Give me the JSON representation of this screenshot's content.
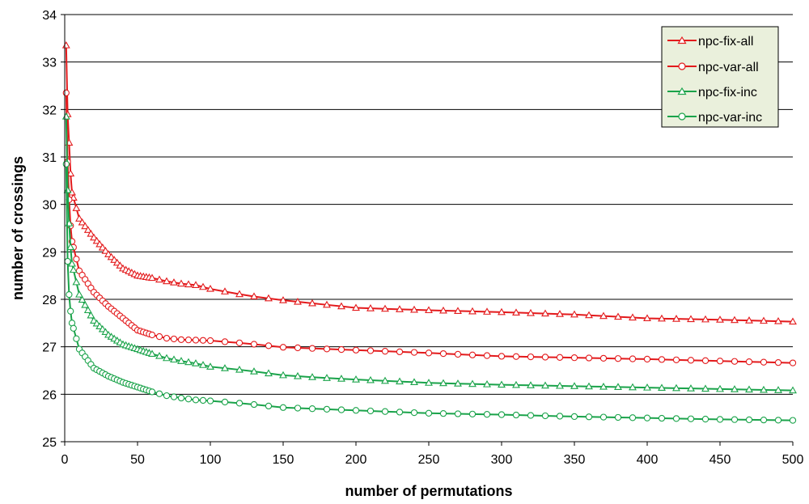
{
  "chart_data": {
    "type": "line",
    "title": "",
    "xlabel": "number of permutations",
    "ylabel": "number of crossings",
    "xlim": [
      0,
      500
    ],
    "ylim": [
      25,
      34
    ],
    "x_ticks": [
      "0",
      "50",
      "100",
      "150",
      "200",
      "250",
      "300",
      "350",
      "400",
      "450",
      "500"
    ],
    "y_ticks": [
      "25",
      "26",
      "27",
      "28",
      "29",
      "30",
      "31",
      "32",
      "33",
      "34"
    ],
    "grid": "horizontal",
    "legend_position": "top-right",
    "colors": {
      "red": "#e31a1c",
      "green": "#1aa34a",
      "background": "#ffffff",
      "legend_bg": "#eaf0dc"
    },
    "x": [
      1,
      2,
      3,
      4,
      5,
      10,
      20,
      30,
      40,
      50,
      60,
      70,
      80,
      90,
      100,
      125,
      150,
      175,
      200,
      250,
      300,
      350,
      400,
      450,
      500
    ],
    "series": [
      {
        "name": "npc-fix-all",
        "color": "#e31a1c",
        "marker": "triangle",
        "values": [
          33.35,
          31.9,
          31.3,
          30.65,
          30.25,
          29.7,
          29.3,
          28.95,
          28.65,
          28.5,
          28.45,
          28.38,
          28.33,
          28.3,
          28.22,
          28.08,
          27.98,
          27.9,
          27.82,
          27.77,
          27.73,
          27.68,
          27.6,
          27.57,
          27.53
        ]
      },
      {
        "name": "npc-var-all",
        "color": "#e31a1c",
        "marker": "circle",
        "values": [
          32.35,
          30.9,
          30.1,
          29.55,
          29.22,
          28.6,
          28.15,
          27.85,
          27.6,
          27.35,
          27.25,
          27.18,
          27.15,
          27.14,
          27.13,
          27.07,
          26.99,
          26.96,
          26.93,
          26.87,
          26.8,
          26.77,
          26.74,
          26.7,
          26.66
        ]
      },
      {
        "name": "npc-fix-inc",
        "color": "#1aa34a",
        "marker": "triangle",
        "values": [
          31.85,
          30.3,
          29.6,
          29.1,
          28.75,
          28.1,
          27.55,
          27.25,
          27.05,
          26.95,
          26.85,
          26.76,
          26.7,
          26.65,
          26.58,
          26.5,
          26.4,
          26.35,
          26.31,
          26.24,
          26.2,
          26.17,
          26.14,
          26.11,
          26.08
        ]
      },
      {
        "name": "npc-var-inc",
        "color": "#1aa34a",
        "marker": "circle",
        "values": [
          30.85,
          28.8,
          28.1,
          27.75,
          27.5,
          26.95,
          26.55,
          26.38,
          26.25,
          26.15,
          26.05,
          25.97,
          25.92,
          25.88,
          25.86,
          25.8,
          25.72,
          25.69,
          25.66,
          25.6,
          25.57,
          25.53,
          25.5,
          25.47,
          25.45
        ]
      }
    ]
  }
}
